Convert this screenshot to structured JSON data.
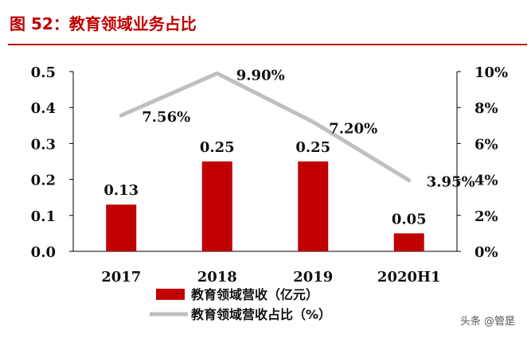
{
  "title": "图 52：教育领域业务占比",
  "watermark": "头条 @管是",
  "chart_data": {
    "type": "bar",
    "categories": [
      "2017",
      "2018",
      "2019",
      "2020H1"
    ],
    "series": [
      {
        "name": "教育领域营收（亿元）",
        "type": "bar",
        "axis": "left",
        "values": [
          0.13,
          0.25,
          0.25,
          0.05
        ],
        "labels": [
          "0.13",
          "0.25",
          "0.25",
          "0.05"
        ],
        "color": "#c00000"
      },
      {
        "name": "教育领域营收占比（%）",
        "type": "line",
        "axis": "right",
        "values": [
          7.56,
          9.9,
          7.2,
          3.95
        ],
        "labels": [
          "7.56%",
          "9.90%",
          "7.20%",
          "3.95%"
        ],
        "color": "#bfbfbf"
      }
    ],
    "y_left": {
      "range": [
        0,
        0.5
      ],
      "ticks": [
        "0.0",
        "0.1",
        "0.2",
        "0.3",
        "0.4",
        "0.5"
      ]
    },
    "y_right": {
      "range": [
        0,
        10
      ],
      "ticks": [
        "0%",
        "2%",
        "4%",
        "6%",
        "8%",
        "10%"
      ]
    },
    "legend_position": "bottom",
    "grid": false
  }
}
